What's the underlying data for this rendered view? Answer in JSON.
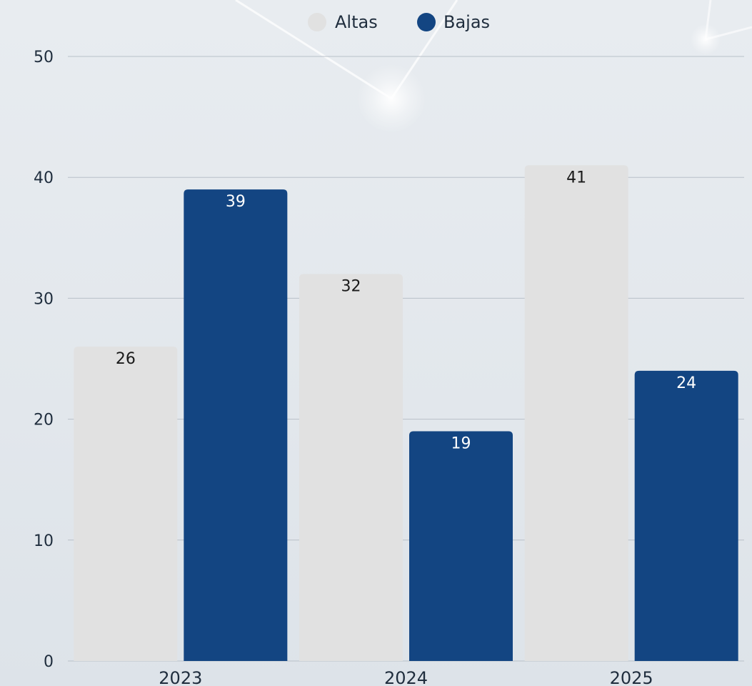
{
  "chart_data": {
    "type": "bar",
    "categories": [
      "2023",
      "2024",
      "2025"
    ],
    "series": [
      {
        "name": "Altas",
        "values": [
          26,
          32,
          41
        ],
        "color": "#e1e1e1",
        "label_color": "#1a1a1a"
      },
      {
        "name": "Bajas",
        "values": [
          39,
          19,
          24
        ],
        "color": "#134582",
        "label_color": "#ffffff"
      }
    ],
    "yticks": [
      0,
      10,
      20,
      30,
      40,
      50
    ],
    "ylim": [
      0,
      50
    ],
    "title": "",
    "xlabel": "",
    "ylabel": "",
    "legend": "top-center",
    "grid": true
  }
}
